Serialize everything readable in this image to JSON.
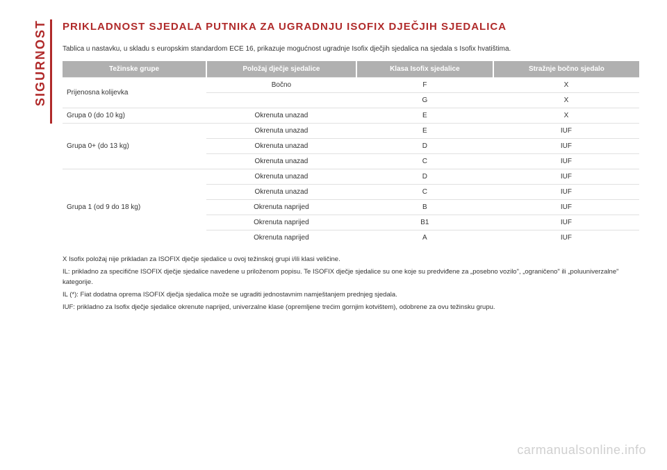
{
  "vertical_label": "SIGURNOST",
  "title": "PRIKLADNOST SJEDALA PUTNIKA ZA UGRADNJU ISOFIX DJEČJIH SJEDALICA",
  "intro": "Tablica u nastavku, u skladu s europskim standardom ECE 16, prikazuje mogućnost ugradnje Isofix dječjih sjedalica na sjedala s Isofix hvatištima.",
  "table": {
    "headers": [
      "Težinske grupe",
      "Položaj dječje sjedalice",
      "Klasa Isofix sjedalice",
      "Stražnje bočno sjedalo"
    ],
    "rows": [
      {
        "group": "Prijenosna kolijevka",
        "orient": "Bočno",
        "cls": "F",
        "seat": "X",
        "rowspan": 2
      },
      {
        "orient": "",
        "cls": "G",
        "seat": "X"
      },
      {
        "group": "Grupa 0 (do 10 kg)",
        "orient": "Okrenuta unazad",
        "cls": "E",
        "seat": "X",
        "rowspan": 1
      },
      {
        "group": "Grupa 0+ (do 13 kg)",
        "orient": "Okrenuta unazad",
        "cls": "E",
        "seat": "IUF",
        "rowspan": 3
      },
      {
        "orient": "Okrenuta unazad",
        "cls": "D",
        "seat": "IUF"
      },
      {
        "orient": "Okrenuta unazad",
        "cls": "C",
        "seat": "IUF"
      },
      {
        "group": "Grupa 1 (od 9 do 18 kg)",
        "orient": "Okrenuta unazad",
        "cls": "D",
        "seat": "IUF",
        "rowspan": 5
      },
      {
        "orient": "Okrenuta unazad",
        "cls": "C",
        "seat": "IUF"
      },
      {
        "orient": "Okrenuta naprijed",
        "cls": "B",
        "seat": "IUF"
      },
      {
        "orient": "Okrenuta naprijed",
        "cls": "B1",
        "seat": "IUF"
      },
      {
        "orient": "Okrenuta naprijed",
        "cls": "A",
        "seat": "IUF"
      }
    ]
  },
  "legend": [
    "X  Isofix položaj nije prikladan za ISOFIX dječje sjedalice u ovoj težinskoj grupi i/ili klasi veličine.",
    "IL: prikladno za specifične ISOFIX dječje sjedalice navedene u priloženom popisu. Te ISOFIX dječje sjedalice su one koje su predviđene za „posebno vozilo\", „ograničeno\" ili „poluuniverzalne\" kategorije.",
    "IL (*): Fiat dodatna oprema ISOFIX dječja sjedalica može se ugraditi jednostavnim namještanjem prednjeg sjedala.",
    "IUF: prikladno za Isofix dječje sjedalice okrenute naprijed, univerzalne klase (opremljene trećim gornjim kotvištem), odobrene za ovu težinsku grupu."
  ],
  "watermark": "carmanualsonline.info",
  "colors": {
    "accent": "#b02a2a",
    "header_bg": "#b0b0b0",
    "header_fg": "#ffffff",
    "text": "#333333",
    "watermark": "#d0d0d0"
  }
}
